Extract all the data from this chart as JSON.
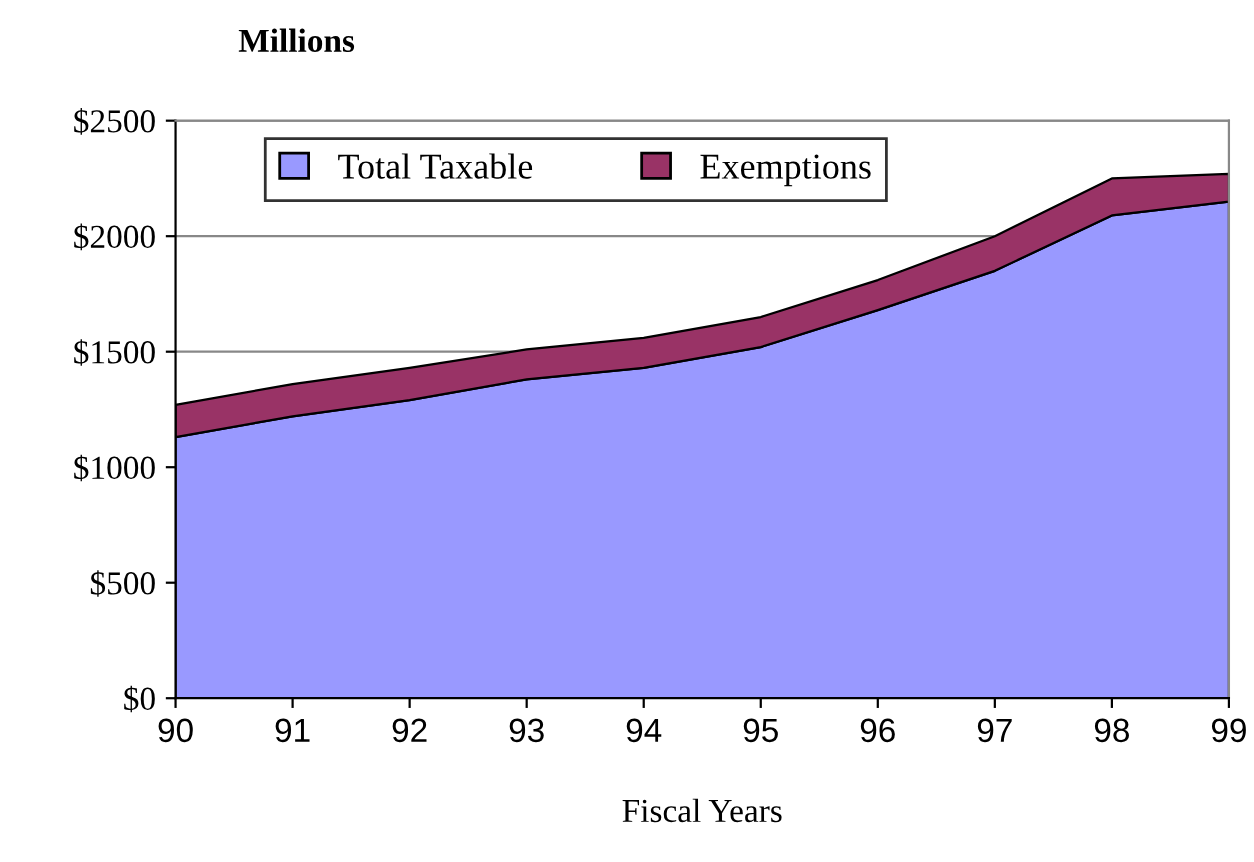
{
  "chart_data": {
    "type": "area",
    "stacked": true,
    "ylabel": "Millions",
    "xlabel": "Fiscal Years",
    "categories": [
      "90",
      "91",
      "92",
      "93",
      "94",
      "95",
      "96",
      "97",
      "98",
      "99"
    ],
    "series": [
      {
        "name": "Total Taxable",
        "color": "#9999ff",
        "values": [
          1130,
          1220,
          1290,
          1380,
          1430,
          1520,
          1680,
          1850,
          2090,
          2150
        ]
      },
      {
        "name": "Exemptions",
        "color": "#993366",
        "values": [
          140,
          140,
          140,
          130,
          130,
          130,
          130,
          150,
          160,
          120
        ]
      }
    ],
    "ylim": [
      0,
      2500
    ],
    "yticks": [
      {
        "value": 0,
        "label": "$0"
      },
      {
        "value": 500,
        "label": "$500"
      },
      {
        "value": 1000,
        "label": "$1000"
      },
      {
        "value": 1500,
        "label": "$1500"
      },
      {
        "value": 2000,
        "label": "$2000"
      },
      {
        "value": 2500,
        "label": "$2500"
      }
    ],
    "grid": "y",
    "legend": "top"
  }
}
